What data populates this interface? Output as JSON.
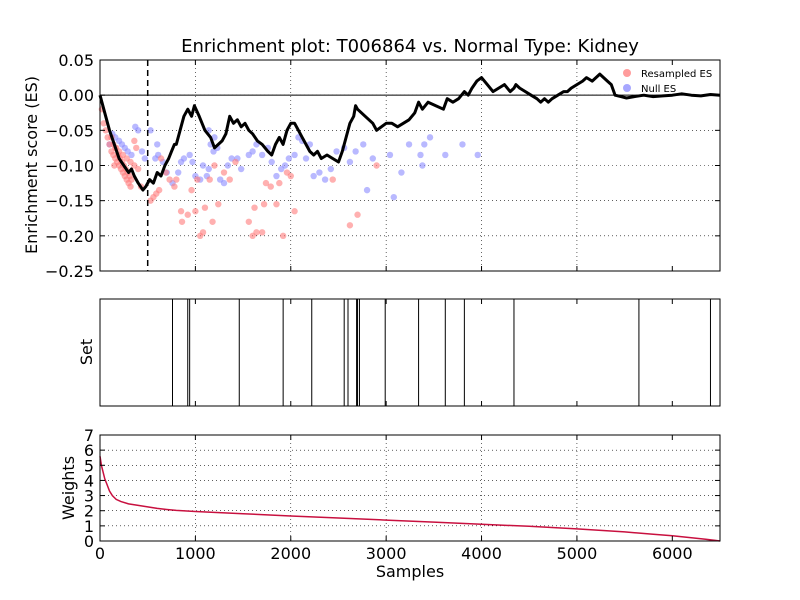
{
  "title": "Enrichment plot: T006864 vs. Normal Type: Kidney",
  "x_axis": {
    "label": "Samples",
    "range": [
      0,
      6500
    ],
    "ticks": [
      "0",
      "1000",
      "2000",
      "3000",
      "4000",
      "5000",
      "6000"
    ]
  },
  "chart_data": [
    {
      "type": "line",
      "panel": "enrichment",
      "ylabel": "Enrichment score (ES)",
      "xlim": [
        0,
        6500
      ],
      "ylim": [
        -0.25,
        0.05
      ],
      "grid": true,
      "yticks": [
        "0.05",
        "0.00",
        "−0.05",
        "−0.10",
        "−0.15",
        "−0.20",
        "−0.25"
      ],
      "legend": {
        "position": "top-right",
        "entries": [
          "Resampled ES",
          "Null ES"
        ]
      },
      "max_deviation_x": 500,
      "running_es": [
        [
          0,
          0.0
        ],
        [
          20,
          -0.01
        ],
        [
          60,
          -0.03
        ],
        [
          100,
          -0.05
        ],
        [
          150,
          -0.07
        ],
        [
          200,
          -0.09
        ],
        [
          250,
          -0.1
        ],
        [
          300,
          -0.11
        ],
        [
          330,
          -0.105
        ],
        [
          360,
          -0.115
        ],
        [
          400,
          -0.125
        ],
        [
          450,
          -0.135
        ],
        [
          480,
          -0.13
        ],
        [
          520,
          -0.12
        ],
        [
          560,
          -0.125
        ],
        [
          600,
          -0.11
        ],
        [
          640,
          -0.115
        ],
        [
          680,
          -0.1
        ],
        [
          720,
          -0.09
        ],
        [
          750,
          -0.08
        ],
        [
          780,
          -0.07
        ],
        [
          800,
          -0.07
        ],
        [
          840,
          -0.05
        ],
        [
          880,
          -0.03
        ],
        [
          920,
          -0.02
        ],
        [
          960,
          -0.03
        ],
        [
          990,
          -0.015
        ],
        [
          1040,
          -0.03
        ],
        [
          1100,
          -0.05
        ],
        [
          1160,
          -0.06
        ],
        [
          1200,
          -0.075
        ],
        [
          1240,
          -0.07
        ],
        [
          1280,
          -0.065
        ],
        [
          1320,
          -0.055
        ],
        [
          1360,
          -0.03
        ],
        [
          1400,
          -0.04
        ],
        [
          1440,
          -0.035
        ],
        [
          1480,
          -0.045
        ],
        [
          1520,
          -0.04
        ],
        [
          1560,
          -0.05
        ],
        [
          1600,
          -0.055
        ],
        [
          1650,
          -0.065
        ],
        [
          1700,
          -0.07
        ],
        [
          1760,
          -0.08
        ],
        [
          1800,
          -0.085
        ],
        [
          1840,
          -0.07
        ],
        [
          1880,
          -0.06
        ],
        [
          1920,
          -0.07
        ],
        [
          1960,
          -0.05
        ],
        [
          2000,
          -0.04
        ],
        [
          2040,
          -0.04
        ],
        [
          2080,
          -0.05
        ],
        [
          2120,
          -0.06
        ],
        [
          2160,
          -0.07
        ],
        [
          2200,
          -0.08
        ],
        [
          2240,
          -0.085
        ],
        [
          2280,
          -0.08
        ],
        [
          2320,
          -0.09
        ],
        [
          2380,
          -0.085
        ],
        [
          2440,
          -0.09
        ],
        [
          2500,
          -0.095
        ],
        [
          2540,
          -0.08
        ],
        [
          2580,
          -0.06
        ],
        [
          2620,
          -0.04
        ],
        [
          2660,
          -0.03
        ],
        [
          2680,
          -0.015
        ],
        [
          2700,
          -0.02
        ],
        [
          2780,
          -0.03
        ],
        [
          2860,
          -0.04
        ],
        [
          2900,
          -0.05
        ],
        [
          2950,
          -0.045
        ],
        [
          3000,
          -0.04
        ],
        [
          3060,
          -0.04
        ],
        [
          3120,
          -0.045
        ],
        [
          3180,
          -0.04
        ],
        [
          3240,
          -0.035
        ],
        [
          3300,
          -0.025
        ],
        [
          3340,
          -0.01
        ],
        [
          3380,
          -0.02
        ],
        [
          3440,
          -0.01
        ],
        [
          3520,
          -0.015
        ],
        [
          3600,
          -0.02
        ],
        [
          3640,
          -0.005
        ],
        [
          3700,
          -0.01
        ],
        [
          3760,
          -0.005
        ],
        [
          3820,
          0.005
        ],
        [
          3860,
          0.0
        ],
        [
          3900,
          0.01
        ],
        [
          3950,
          0.02
        ],
        [
          4000,
          0.025
        ],
        [
          4060,
          0.015
        ],
        [
          4120,
          0.005
        ],
        [
          4180,
          0.01
        ],
        [
          4240,
          0.015
        ],
        [
          4300,
          0.005
        ],
        [
          4340,
          0.01
        ],
        [
          4360,
          0.015
        ],
        [
          4400,
          0.01
        ],
        [
          4460,
          0.005
        ],
        [
          4520,
          0.0
        ],
        [
          4580,
          -0.005
        ],
        [
          4620,
          -0.01
        ],
        [
          4660,
          -0.005
        ],
        [
          4700,
          -0.01
        ],
        [
          4740,
          -0.005
        ],
        [
          4800,
          0.0
        ],
        [
          4860,
          0.005
        ],
        [
          4900,
          0.005
        ],
        [
          4940,
          0.01
        ],
        [
          5000,
          0.015
        ],
        [
          5060,
          0.02
        ],
        [
          5100,
          0.025
        ],
        [
          5160,
          0.02
        ],
        [
          5200,
          0.025
        ],
        [
          5240,
          0.03
        ],
        [
          5280,
          0.025
        ],
        [
          5320,
          0.02
        ],
        [
          5360,
          0.015
        ],
        [
          5400,
          0.0
        ],
        [
          5460,
          -0.002
        ],
        [
          5520,
          -0.004
        ],
        [
          5600,
          -0.002
        ],
        [
          5700,
          0.0
        ],
        [
          5800,
          -0.002
        ],
        [
          5900,
          -0.001
        ],
        [
          6000,
          0.0
        ],
        [
          6100,
          0.002
        ],
        [
          6200,
          0.0
        ],
        [
          6300,
          -0.001
        ],
        [
          6400,
          0.001
        ],
        [
          6500,
          0.0
        ]
      ],
      "resampled_es": [
        [
          20,
          -0.02
        ],
        [
          40,
          -0.04
        ],
        [
          60,
          -0.05
        ],
        [
          80,
          -0.06
        ],
        [
          100,
          -0.07
        ],
        [
          120,
          -0.08
        ],
        [
          140,
          -0.085
        ],
        [
          160,
          -0.09
        ],
        [
          180,
          -0.095
        ],
        [
          200,
          -0.1
        ],
        [
          220,
          -0.105
        ],
        [
          240,
          -0.11
        ],
        [
          260,
          -0.115
        ],
        [
          280,
          -0.12
        ],
        [
          300,
          -0.125
        ],
        [
          320,
          -0.13
        ],
        [
          150,
          -0.1
        ],
        [
          170,
          -0.075
        ],
        [
          190,
          -0.085
        ],
        [
          210,
          -0.09
        ],
        [
          230,
          -0.095
        ],
        [
          250,
          -0.1
        ],
        [
          270,
          -0.105
        ],
        [
          290,
          -0.11
        ],
        [
          310,
          -0.115
        ],
        [
          330,
          -0.12
        ],
        [
          120,
          -0.06
        ],
        [
          140,
          -0.07
        ],
        [
          160,
          -0.075
        ],
        [
          200,
          -0.08
        ],
        [
          240,
          -0.085
        ],
        [
          280,
          -0.09
        ],
        [
          320,
          -0.095
        ],
        [
          360,
          -0.1
        ],
        [
          400,
          -0.105
        ],
        [
          360,
          -0.065
        ],
        [
          380,
          -0.075
        ],
        [
          430,
          -0.13
        ],
        [
          530,
          -0.15
        ],
        [
          560,
          -0.145
        ],
        [
          590,
          -0.14
        ],
        [
          620,
          -0.135
        ],
        [
          640,
          -0.09
        ],
        [
          690,
          -0.11
        ],
        [
          730,
          -0.12
        ],
        [
          780,
          -0.13
        ],
        [
          800,
          -0.12
        ],
        [
          850,
          -0.165
        ],
        [
          860,
          -0.18
        ],
        [
          920,
          -0.17
        ],
        [
          960,
          -0.135
        ],
        [
          1000,
          -0.165
        ],
        [
          1020,
          -0.12
        ],
        [
          1050,
          -0.2
        ],
        [
          1080,
          -0.195
        ],
        [
          1100,
          -0.16
        ],
        [
          1150,
          -0.12
        ],
        [
          1180,
          -0.18
        ],
        [
          1200,
          -0.1
        ],
        [
          1240,
          -0.155
        ],
        [
          1300,
          -0.11
        ],
        [
          1360,
          -0.12
        ],
        [
          1420,
          -0.095
        ],
        [
          1560,
          -0.18
        ],
        [
          1600,
          -0.2
        ],
        [
          1620,
          -0.16
        ],
        [
          1640,
          -0.195
        ],
        [
          1700,
          -0.195
        ],
        [
          1720,
          -0.155
        ],
        [
          1740,
          -0.125
        ],
        [
          1790,
          -0.13
        ],
        [
          1850,
          -0.155
        ],
        [
          1880,
          -0.125
        ],
        [
          1920,
          -0.2
        ],
        [
          1960,
          -0.11
        ],
        [
          2000,
          -0.115
        ],
        [
          2040,
          -0.165
        ],
        [
          2440,
          -0.12
        ],
        [
          2620,
          -0.185
        ],
        [
          2700,
          -0.17
        ],
        [
          2900,
          -0.1
        ]
      ],
      "null_es": [
        [
          100,
          -0.07
        ],
        [
          130,
          -0.055
        ],
        [
          160,
          -0.06
        ],
        [
          200,
          -0.065
        ],
        [
          230,
          -0.07
        ],
        [
          260,
          -0.075
        ],
        [
          290,
          -0.08
        ],
        [
          330,
          -0.085
        ],
        [
          370,
          -0.045
        ],
        [
          400,
          -0.05
        ],
        [
          440,
          -0.08
        ],
        [
          470,
          -0.09
        ],
        [
          530,
          -0.05
        ],
        [
          580,
          -0.09
        ],
        [
          610,
          -0.085
        ],
        [
          660,
          -0.095
        ],
        [
          700,
          -0.11
        ],
        [
          760,
          -0.125
        ],
        [
          820,
          -0.11
        ],
        [
          850,
          -0.095
        ],
        [
          880,
          -0.09
        ],
        [
          940,
          -0.085
        ],
        [
          970,
          -0.095
        ],
        [
          1000,
          -0.115
        ],
        [
          1050,
          -0.12
        ],
        [
          1080,
          -0.1
        ],
        [
          1120,
          -0.115
        ],
        [
          1140,
          -0.105
        ],
        [
          1160,
          -0.07
        ],
        [
          1190,
          -0.08
        ],
        [
          1230,
          -0.075
        ],
        [
          1260,
          -0.12
        ],
        [
          1300,
          -0.125
        ],
        [
          1340,
          -0.1
        ],
        [
          1380,
          -0.09
        ],
        [
          1440,
          -0.09
        ],
        [
          1480,
          -0.105
        ],
        [
          1560,
          -0.085
        ],
        [
          1600,
          -0.08
        ],
        [
          1640,
          -0.07
        ],
        [
          1700,
          -0.085
        ],
        [
          1760,
          -0.075
        ],
        [
          1800,
          -0.095
        ],
        [
          1850,
          -0.115
        ],
        [
          1900,
          -0.105
        ],
        [
          1940,
          -0.1
        ],
        [
          1980,
          -0.09
        ],
        [
          2040,
          -0.085
        ],
        [
          2080,
          -0.06
        ],
        [
          2120,
          -0.065
        ],
        [
          2200,
          -0.07
        ],
        [
          2240,
          -0.115
        ],
        [
          2300,
          -0.11
        ],
        [
          2360,
          -0.12
        ],
        [
          2420,
          -0.105
        ],
        [
          2480,
          -0.08
        ],
        [
          2560,
          -0.075
        ],
        [
          2620,
          -0.095
        ],
        [
          2680,
          -0.08
        ],
        [
          2760,
          -0.07
        ],
        [
          2800,
          -0.135
        ],
        [
          2860,
          -0.09
        ],
        [
          3040,
          -0.085
        ],
        [
          3080,
          -0.145
        ],
        [
          3160,
          -0.11
        ],
        [
          3240,
          -0.07
        ],
        [
          3360,
          -0.085
        ],
        [
          3400,
          -0.07
        ],
        [
          3460,
          -0.06
        ],
        [
          3620,
          -0.085
        ],
        [
          3800,
          -0.07
        ],
        [
          3960,
          -0.085
        ],
        [
          1140,
          -0.05
        ],
        [
          1200,
          -0.06
        ],
        [
          600,
          -0.07
        ],
        [
          2160,
          -0.09
        ],
        [
          3380,
          -0.1
        ]
      ]
    },
    {
      "type": "event",
      "panel": "set",
      "ylabel": "Set",
      "xlim": [
        0,
        6500
      ],
      "positions": [
        760,
        920,
        940,
        1460,
        1920,
        2220,
        2560,
        2600,
        2690,
        2700,
        2720,
        2990,
        3340,
        3620,
        3820,
        4340,
        5650,
        6400
      ]
    },
    {
      "type": "line",
      "panel": "weights",
      "ylabel": "Weights",
      "xlim": [
        0,
        6500
      ],
      "ylim": [
        0,
        7
      ],
      "grid": true,
      "yticks": [
        "0",
        "1",
        "2",
        "3",
        "4",
        "5",
        "6",
        "7"
      ],
      "weights": [
        [
          0,
          5.6
        ],
        [
          15,
          5.0
        ],
        [
          30,
          4.6
        ],
        [
          50,
          4.1
        ],
        [
          75,
          3.7
        ],
        [
          100,
          3.3
        ],
        [
          130,
          3.0
        ],
        [
          170,
          2.75
        ],
        [
          220,
          2.6
        ],
        [
          300,
          2.45
        ],
        [
          400,
          2.35
        ],
        [
          500,
          2.25
        ],
        [
          600,
          2.15
        ],
        [
          700,
          2.08
        ],
        [
          800,
          2.02
        ],
        [
          1000,
          1.95
        ],
        [
          1500,
          1.8
        ],
        [
          2000,
          1.65
        ],
        [
          2500,
          1.52
        ],
        [
          3000,
          1.38
        ],
        [
          3500,
          1.25
        ],
        [
          4000,
          1.1
        ],
        [
          4500,
          0.97
        ],
        [
          5000,
          0.8
        ],
        [
          5500,
          0.6
        ],
        [
          5800,
          0.45
        ],
        [
          6000,
          0.35
        ],
        [
          6200,
          0.22
        ],
        [
          6350,
          0.12
        ],
        [
          6450,
          0.04
        ],
        [
          6500,
          0.0
        ]
      ]
    }
  ],
  "colors": {
    "running_es": "#000000",
    "resampled": "#ff7b7b",
    "null": "#8a8aff",
    "weights": "#c8103f",
    "grid": "#000000"
  }
}
